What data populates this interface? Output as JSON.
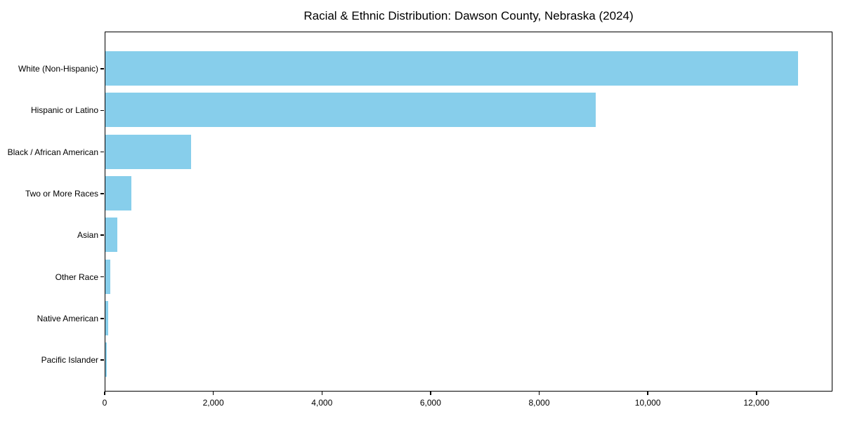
{
  "title": "Racial & Ethnic Distribution: Dawson County, Nebraska (2024)",
  "colors": {
    "bar": "#87CEEB",
    "axis": "#000000",
    "text": "#000000",
    "background": "#ffffff"
  },
  "chart_data": {
    "type": "bar",
    "orientation": "horizontal",
    "title": "Racial & Ethnic Distribution: Dawson County, Nebraska (2024)",
    "categories": [
      "White (Non-Hispanic)",
      "Hispanic or Latino",
      "Black / African American",
      "Two or More Races",
      "Asian",
      "Other Race",
      "Native American",
      "Pacific Islander"
    ],
    "values": [
      12775,
      9050,
      1575,
      480,
      220,
      85,
      50,
      25
    ],
    "xlabel": "",
    "ylabel": "",
    "xlim": [
      0,
      13400
    ],
    "x_ticks": [
      0,
      2000,
      4000,
      6000,
      8000,
      10000,
      12000
    ],
    "x_tick_labels": [
      "0",
      "2,000",
      "4,000",
      "6,000",
      "8,000",
      "10,000",
      "12,000"
    ],
    "grid": false,
    "legend": null,
    "bar_color": "#87CEEB",
    "bars_sorted_descending": true
  }
}
